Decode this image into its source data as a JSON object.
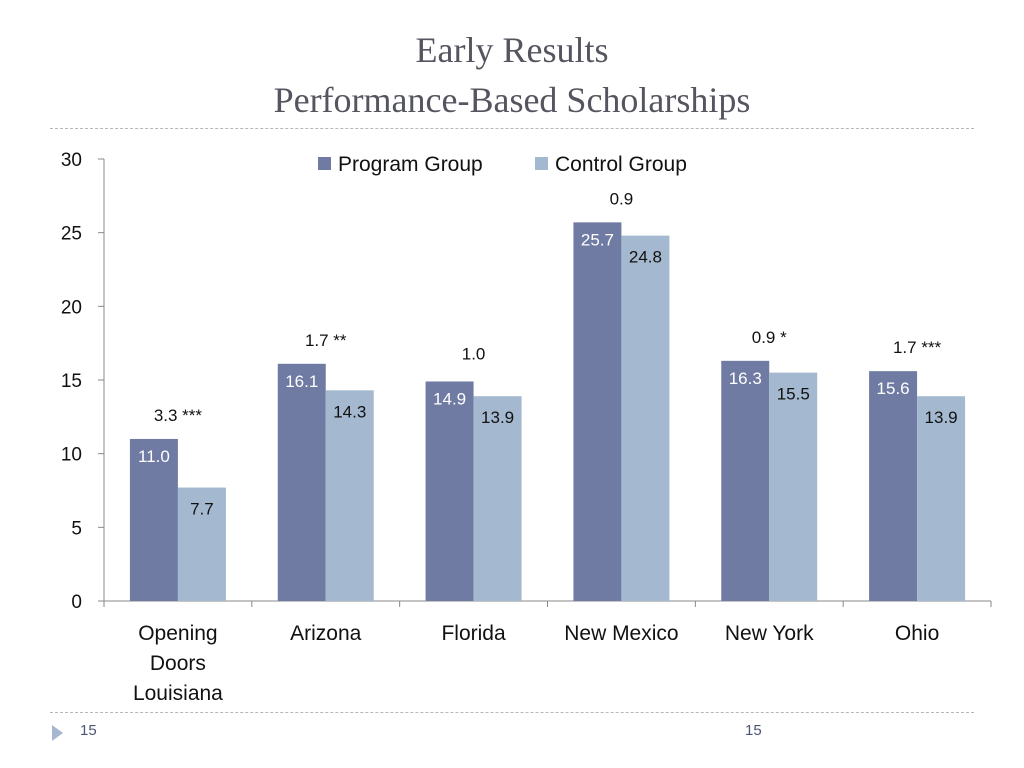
{
  "slide": {
    "title_line1": "Early Results",
    "title_line2": "Performance-Based Scholarships",
    "footer_left": "15",
    "footer_right": "15"
  },
  "colors": {
    "program": "#707ba3",
    "control": "#a4b9d0",
    "axis": "#888888",
    "text": "#111111",
    "bar_label_light": "#ffffff"
  },
  "chart_data": {
    "type": "bar",
    "title": "",
    "xlabel": "",
    "ylabel": "",
    "ylim": [
      0,
      30
    ],
    "yticks": [
      0,
      5,
      10,
      15,
      20,
      25,
      30
    ],
    "grid": false,
    "legend_position": "top-center",
    "categories": [
      [
        "Opening",
        "Doors",
        "Louisiana"
      ],
      [
        "Arizona"
      ],
      [
        "Florida"
      ],
      [
        "New Mexico"
      ],
      [
        "New York"
      ],
      [
        "Ohio"
      ]
    ],
    "series": [
      {
        "name": "Program Group",
        "values": [
          11.0,
          16.1,
          14.9,
          25.7,
          16.3,
          15.6
        ],
        "labels": [
          "11.0",
          "16.1",
          "14.9",
          "25.7",
          "16.3",
          "15.6"
        ]
      },
      {
        "name": "Control Group",
        "values": [
          7.7,
          14.3,
          13.9,
          24.8,
          15.5,
          13.9
        ],
        "labels": [
          "7.7",
          "14.3",
          "13.9",
          "24.8",
          "15.5",
          "13.9"
        ]
      }
    ],
    "annotations": [
      "3.3 ***",
      "1.7 **",
      "1.0",
      "0.9",
      "0.9 *",
      "1.7 ***"
    ]
  }
}
